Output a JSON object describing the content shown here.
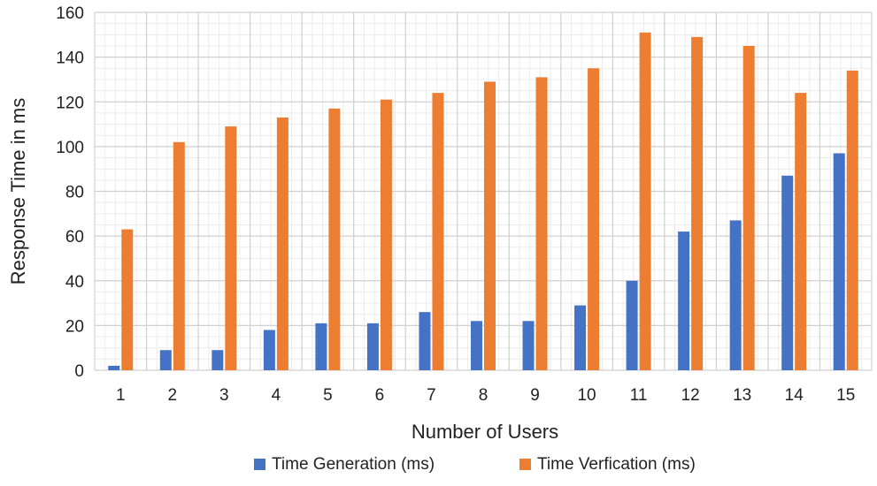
{
  "chart_data": {
    "type": "bar",
    "title": "",
    "xlabel": "Number of Users",
    "ylabel": "Response Time in ms",
    "categories": [
      "1",
      "2",
      "3",
      "4",
      "5",
      "6",
      "7",
      "8",
      "9",
      "10",
      "11",
      "12",
      "13",
      "14",
      "15"
    ],
    "series": [
      {
        "name": "Time Generation (ms)",
        "color": "#4472C4",
        "values": [
          2,
          9,
          9,
          18,
          21,
          21,
          26,
          22,
          22,
          29,
          40,
          62,
          67,
          87,
          97
        ]
      },
      {
        "name": "Time Verfication (ms)",
        "color": "#ED7D31",
        "values": [
          63,
          102,
          109,
          113,
          117,
          121,
          124,
          129,
          131,
          135,
          151,
          149,
          145,
          124,
          134
        ]
      }
    ],
    "ylim": [
      0,
      160
    ],
    "yticks": [
      0,
      20,
      40,
      60,
      80,
      100,
      120,
      140,
      160
    ],
    "grid": true,
    "legend_position": "bottom"
  }
}
